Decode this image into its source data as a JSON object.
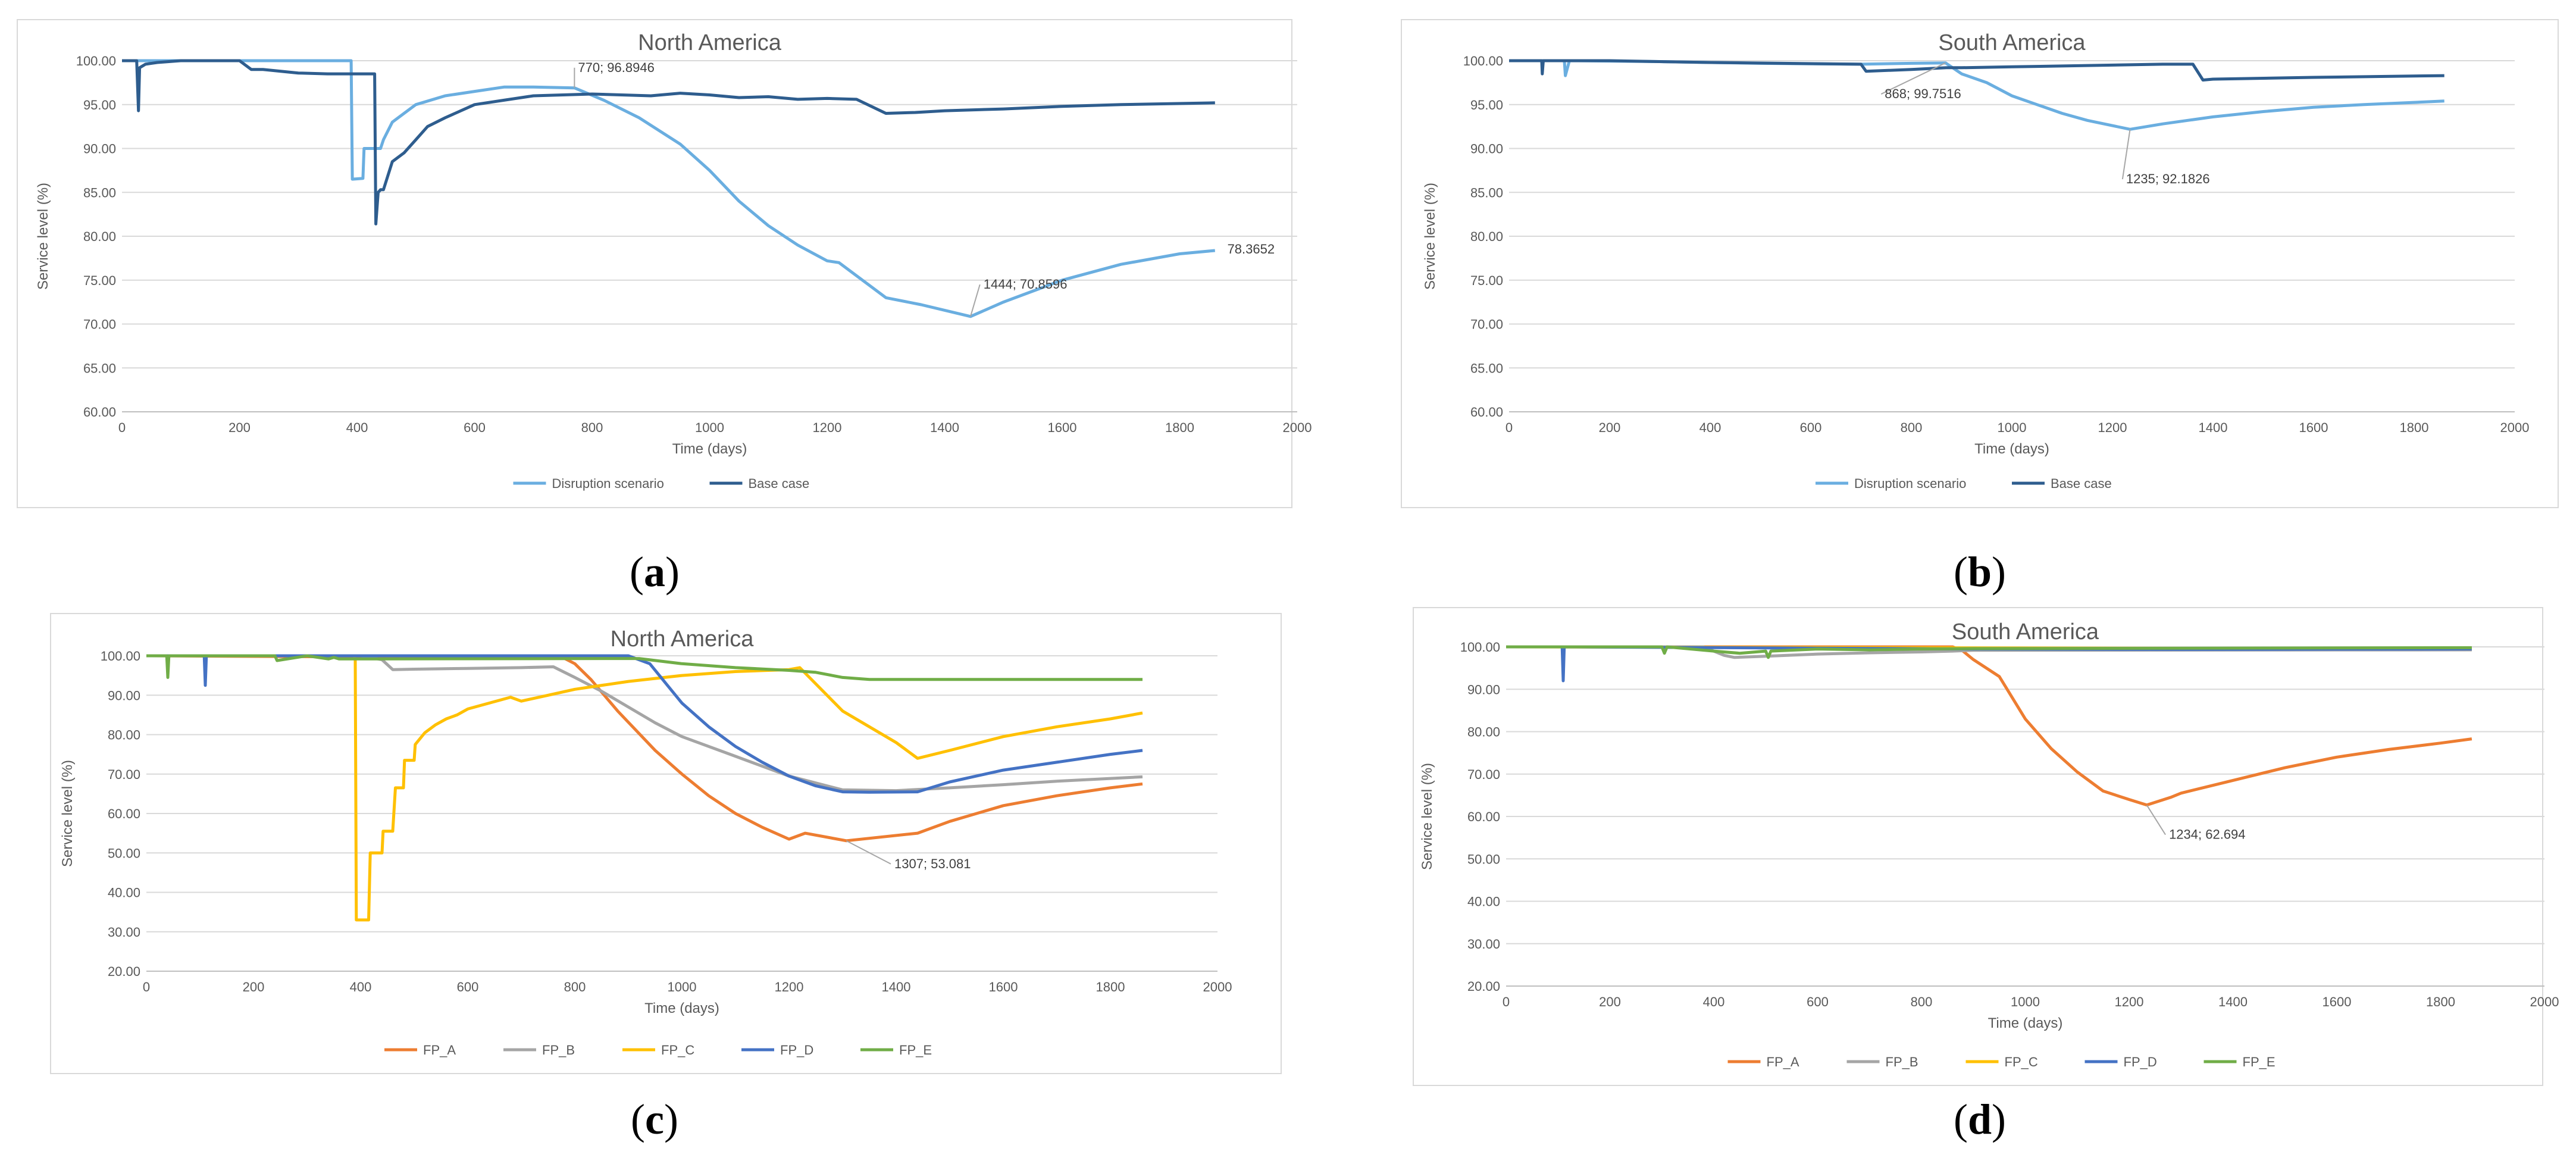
{
  "chart_data": [
    {
      "id": "a",
      "panel_label": "a",
      "type": "line",
      "title": "North America",
      "xlabel": "Time (days)",
      "ylabel": "Service level (%)",
      "xlim": [
        0,
        2000
      ],
      "ylim": [
        60,
        100
      ],
      "x_ticks": [
        "0",
        "200",
        "400",
        "600",
        "800",
        "1000",
        "1200",
        "1400",
        "1600",
        "1800",
        "2000"
      ],
      "y_ticks": [
        "60.00",
        "65.00",
        "70.00",
        "75.00",
        "80.00",
        "85.00",
        "90.00",
        "95.00",
        "100.00"
      ],
      "legend_position": "bottom",
      "series": [
        {
          "name": "Disruption scenario",
          "color": "#6aaee0",
          "x": [
            0,
            380,
            390,
            392,
            410,
            412,
            440,
            445,
            460,
            480,
            500,
            550,
            600,
            650,
            700,
            770,
            820,
            880,
            950,
            1000,
            1050,
            1100,
            1150,
            1200,
            1220,
            1260,
            1300,
            1360,
            1444,
            1500,
            1600,
            1700,
            1800,
            1860
          ],
          "y": [
            100,
            100,
            100,
            86.5,
            86.6,
            90,
            90,
            91,
            93,
            94,
            95,
            96,
            96.5,
            97,
            97,
            96.9,
            95.5,
            93.5,
            90.5,
            87.5,
            84,
            81.2,
            79,
            77.2,
            77,
            75,
            73,
            72.2,
            70.86,
            72.5,
            75,
            76.8,
            78.0,
            78.37
          ]
        },
        {
          "name": "Base case",
          "color": "#2e5d8e",
          "x": [
            0,
            25,
            28,
            30,
            35,
            40,
            60,
            100,
            200,
            220,
            240,
            300,
            350,
            380,
            420,
            430,
            432,
            436,
            440,
            445,
            460,
            480,
            500,
            520,
            550,
            600,
            650,
            700,
            800,
            900,
            950,
            1000,
            1050,
            1100,
            1150,
            1200,
            1250,
            1300,
            1350,
            1400,
            1500,
            1600,
            1700,
            1860
          ],
          "y": [
            100,
            100,
            94.3,
            99.2,
            99.4,
            99.6,
            99.8,
            100,
            100,
            99,
            99,
            98.6,
            98.5,
            98.5,
            98.5,
            98.5,
            81.4,
            85,
            85.3,
            85.3,
            88.5,
            89.5,
            91,
            92.5,
            93.5,
            95,
            95.5,
            96,
            96.2,
            96,
            96.3,
            96.1,
            95.8,
            95.9,
            95.6,
            95.7,
            95.6,
            94,
            94.1,
            94.3,
            94.5,
            94.8,
            95.0,
            95.2
          ]
        }
      ],
      "annotations": [
        {
          "text": "770; 96.8946",
          "x": 770,
          "y": 96.89,
          "tx": 770,
          "ty": 99.2,
          "anchor": "start"
        },
        {
          "text": "1444; 70.8596",
          "x": 1444,
          "y": 70.86,
          "tx": 1460,
          "ty": 74.5,
          "anchor": "start"
        },
        {
          "text": "78.3652",
          "x": 1860,
          "y": 78.37,
          "tx": 1875,
          "ty": 78.5,
          "anchor": "start",
          "nolink": true
        }
      ]
    },
    {
      "id": "b",
      "panel_label": "b",
      "type": "line",
      "title": "South America",
      "xlabel": "Time (days)",
      "ylabel": "Service level (%)",
      "xlim": [
        0,
        2000
      ],
      "ylim": [
        60,
        100
      ],
      "x_ticks": [
        "0",
        "200",
        "400",
        "600",
        "800",
        "1000",
        "1200",
        "1400",
        "1600",
        "1800",
        "2000"
      ],
      "y_ticks": [
        "60.00",
        "65.00",
        "70.00",
        "75.00",
        "80.00",
        "85.00",
        "90.00",
        "95.00",
        "100.00"
      ],
      "legend_position": "bottom",
      "series": [
        {
          "name": "Disruption scenario",
          "color": "#6aaee0",
          "x": [
            0,
            100,
            110,
            112,
            120,
            300,
            500,
            700,
            800,
            868,
            900,
            950,
            1000,
            1050,
            1100,
            1150,
            1235,
            1300,
            1400,
            1500,
            1600,
            1700,
            1860
          ],
          "y": [
            100,
            100,
            100,
            98.3,
            100,
            99.9,
            99.7,
            99.6,
            99.7,
            99.75,
            98.5,
            97.5,
            96,
            95,
            94,
            93.2,
            92.18,
            92.8,
            93.6,
            94.2,
            94.7,
            95.0,
            95.4
          ]
        },
        {
          "name": "Base case",
          "color": "#2e5d8e",
          "x": [
            0,
            65,
            66,
            68,
            200,
            400,
            700,
            710,
            800,
            870,
            900,
            1000,
            1200,
            1300,
            1360,
            1380,
            1400,
            1600,
            1860
          ],
          "y": [
            100,
            100,
            98.5,
            100,
            100,
            99.8,
            99.6,
            98.8,
            99,
            99.2,
            99.2,
            99.3,
            99.5,
            99.6,
            99.6,
            97.8,
            97.9,
            98.1,
            98.3
          ]
        }
      ],
      "annotations": [
        {
          "text": "868; 99.7516",
          "x": 868,
          "y": 99.75,
          "tx": 740,
          "ty": 96.2,
          "anchor": "start"
        },
        {
          "text": "1235; 92.1826",
          "x": 1235,
          "y": 92.18,
          "tx": 1220,
          "ty": 86.5,
          "anchor": "start"
        }
      ]
    },
    {
      "id": "c",
      "panel_label": "c",
      "type": "line",
      "title": "North America",
      "xlabel": "Time (days)",
      "ylabel": "Service level (%)",
      "xlim": [
        0,
        2000
      ],
      "ylim": [
        20,
        100
      ],
      "x_ticks": [
        "0",
        "200",
        "400",
        "600",
        "800",
        "1000",
        "1200",
        "1400",
        "1600",
        "1800",
        "2000"
      ],
      "y_ticks": [
        "20.00",
        "30.00",
        "40.00",
        "50.00",
        "60.00",
        "70.00",
        "80.00",
        "90.00",
        "100.00"
      ],
      "legend_position": "bottom",
      "series": [
        {
          "name": "FP_A",
          "color": "#ed7d31",
          "x": [
            0,
            700,
            780,
            800,
            830,
            880,
            950,
            1000,
            1050,
            1100,
            1150,
            1200,
            1230,
            1307,
            1440,
            1500,
            1600,
            1700,
            1800,
            1860
          ],
          "y": [
            100,
            99.5,
            99.4,
            98,
            94,
            86,
            76,
            70,
            64.5,
            60,
            56.5,
            53.5,
            55,
            53.08,
            55,
            58,
            62,
            64.5,
            66.5,
            67.5
          ]
        },
        {
          "name": "FP_B",
          "color": "#a5a5a5",
          "x": [
            0,
            400,
            440,
            460,
            500,
            600,
            700,
            760,
            800,
            850,
            900,
            950,
            1000,
            1100,
            1200,
            1300,
            1400,
            1500,
            1600,
            1700,
            1860
          ],
          "y": [
            100,
            100,
            99,
            96.5,
            96.6,
            96.8,
            97,
            97.2,
            94.5,
            91,
            87,
            83,
            79.5,
            74.5,
            69.5,
            66,
            65.8,
            66.5,
            67.3,
            68.2,
            69.3
          ]
        },
        {
          "name": "FP_C",
          "color": "#ffc000",
          "x": [
            0,
            388,
            390,
            392,
            415,
            418,
            440,
            442,
            460,
            465,
            480,
            482,
            500,
            502,
            520,
            540,
            560,
            580,
            600,
            640,
            680,
            700,
            750,
            800,
            900,
            1000,
            1100,
            1200,
            1220,
            1300,
            1350,
            1400,
            1440,
            1500,
            1600,
            1700,
            1800,
            1860
          ],
          "y": [
            100,
            100,
            99,
            33,
            33,
            50,
            50,
            55.5,
            55.5,
            66.5,
            66.5,
            73.5,
            73.5,
            77.5,
            80.5,
            82.5,
            84,
            85,
            86.5,
            88,
            89.5,
            88.5,
            90,
            91.5,
            93.5,
            95,
            96,
            96.5,
            97,
            86,
            82,
            78,
            74,
            76,
            79.5,
            82,
            84,
            85.5
          ]
        },
        {
          "name": "FP_D",
          "color": "#4472c4",
          "x": [
            0,
            108,
            110,
            112,
            900,
            940,
            970,
            1000,
            1050,
            1100,
            1150,
            1200,
            1250,
            1300,
            1350,
            1440,
            1500,
            1600,
            1700,
            1800,
            1860
          ],
          "y": [
            100,
            100,
            92.5,
            100,
            100,
            98,
            93,
            88,
            82,
            77,
            73,
            69.5,
            67,
            65.5,
            65.4,
            65.5,
            68,
            71,
            73,
            75,
            76
          ]
        },
        {
          "name": "FP_E",
          "color": "#70ad47",
          "x": [
            0,
            38,
            40,
            42,
            240,
            244,
            300,
            340,
            350,
            360,
            920,
            1000,
            1100,
            1200,
            1250,
            1300,
            1350,
            1400,
            1600,
            1860
          ],
          "y": [
            100,
            100,
            94.5,
            100,
            100,
            98.8,
            100,
            99.2,
            99.6,
            99.2,
            99.3,
            98,
            97,
            96.3,
            95.8,
            94.5,
            94,
            94,
            94,
            94
          ]
        }
      ],
      "annotations": [
        {
          "text": "1307; 53.081",
          "x": 1307,
          "y": 53.08,
          "tx": 1390,
          "ty": 47.2,
          "anchor": "start"
        }
      ]
    },
    {
      "id": "d",
      "panel_label": "d",
      "type": "line",
      "title": "South America",
      "xlabel": "Time (days)",
      "ylabel": "Service level (%)",
      "xlim": [
        0,
        2000
      ],
      "ylim": [
        20,
        100
      ],
      "x_ticks": [
        "0",
        "200",
        "400",
        "600",
        "800",
        "1000",
        "1200",
        "1400",
        "1600",
        "1800",
        "2000"
      ],
      "y_ticks": [
        "20.00",
        "30.00",
        "40.00",
        "50.00",
        "60.00",
        "70.00",
        "80.00",
        "90.00",
        "100.00"
      ],
      "legend_position": "bottom",
      "series": [
        {
          "name": "FP_A",
          "color": "#ed7d31",
          "x": [
            0,
            860,
            880,
            900,
            950,
            1000,
            1050,
            1100,
            1150,
            1200,
            1234,
            1280,
            1300,
            1400,
            1500,
            1600,
            1700,
            1800,
            1860
          ],
          "y": [
            100,
            100,
            99,
            97,
            93,
            83,
            76,
            70.5,
            66,
            64,
            62.69,
            64.5,
            65.5,
            68.5,
            71.5,
            74,
            75.8,
            77.3,
            78.3
          ]
        },
        {
          "name": "FP_B",
          "color": "#a5a5a5",
          "x": [
            0,
            380,
            420,
            440,
            500,
            600,
            700,
            800,
            860,
            900,
            1860
          ],
          "y": [
            100,
            100,
            98,
            97.5,
            97.8,
            98.3,
            98.6,
            98.8,
            99,
            99.2,
            99.3
          ]
        },
        {
          "name": "FP_C",
          "color": "#ffc000",
          "x": [
            0,
            1860
          ],
          "y": [
            100,
            99.5
          ]
        },
        {
          "name": "FP_D",
          "color": "#4472c4",
          "x": [
            0,
            108,
            110,
            112,
            900,
            1300,
            1860
          ],
          "y": [
            100,
            100,
            92,
            100,
            99.5,
            99.4,
            99.5
          ]
        },
        {
          "name": "FP_E",
          "color": "#70ad47",
          "x": [
            0,
            300,
            305,
            310,
            400,
            450,
            500,
            505,
            510,
            600,
            700,
            800,
            900,
            1860
          ],
          "y": [
            100,
            100,
            98.5,
            100,
            99,
            98.5,
            99,
            97.5,
            99,
            99.5,
            99.3,
            99.5,
            99.6,
            99.8
          ]
        }
      ],
      "annotations": [
        {
          "text": "1234; 62.694",
          "x": 1234,
          "y": 62.69,
          "tx": 1270,
          "ty": 55.7,
          "anchor": "start"
        }
      ]
    }
  ]
}
